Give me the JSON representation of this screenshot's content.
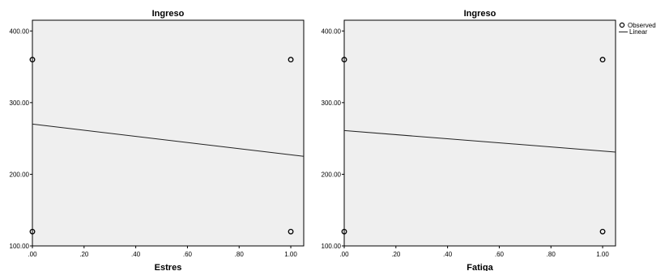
{
  "chart_data": [
    {
      "type": "scatter",
      "title": "Ingreso",
      "xlabel": "Estres",
      "ylabel": "",
      "xlim": [
        0,
        1.05
      ],
      "ylim": [
        100,
        415
      ],
      "xticks": [
        ".00",
        ".20",
        ".40",
        ".60",
        ".80",
        "1.00"
      ],
      "yticks": [
        "100.00",
        "200.00",
        "300.00",
        "400.00"
      ],
      "series": [
        {
          "name": "Observed",
          "kind": "points",
          "x": [
            0,
            0,
            1,
            1
          ],
          "y": [
            360,
            120,
            360,
            120
          ]
        },
        {
          "name": "Linear",
          "kind": "line",
          "x": [
            0,
            1.05
          ],
          "y": [
            270,
            225
          ]
        }
      ],
      "grid": false,
      "legend": "none"
    },
    {
      "type": "scatter",
      "title": "Ingreso",
      "xlabel": "Fatiga",
      "ylabel": "",
      "xlim": [
        0,
        1.05
      ],
      "ylim": [
        100,
        415
      ],
      "xticks": [
        ".00",
        ".20",
        ".40",
        ".60",
        ".80",
        "1.00"
      ],
      "yticks": [
        "100.00",
        "200.00",
        "300.00",
        "400.00"
      ],
      "series": [
        {
          "name": "Observed",
          "kind": "points",
          "x": [
            0,
            0,
            1,
            1
          ],
          "y": [
            360,
            120,
            360,
            120
          ]
        },
        {
          "name": "Linear",
          "kind": "line",
          "x": [
            0,
            1.05
          ],
          "y": [
            261,
            231
          ]
        }
      ],
      "grid": false,
      "legend": "top-right"
    }
  ],
  "legend": {
    "observed_label": "Observed",
    "linear_label": "Linear"
  },
  "colors": {
    "plot_bg": "#efefef",
    "axis": "#000000",
    "line": "#222222",
    "page_bg": "#ffffff"
  }
}
